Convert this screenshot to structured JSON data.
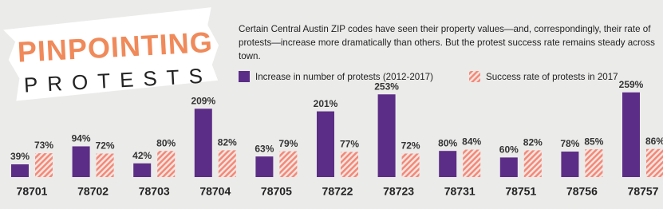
{
  "chart_data": {
    "type": "bar",
    "title": [
      "PINPOINTING",
      "PROTESTS"
    ],
    "description": "Certain Central Austin ZIP codes have seen their property values—and, correspondingly, their rate of protests—increase more dramatically than others. But the protest success rate remains steady across town.",
    "categories": [
      "78701",
      "78702",
      "78703",
      "78704",
      "78705",
      "78722",
      "78723",
      "78731",
      "78751",
      "78756",
      "78757"
    ],
    "series": [
      {
        "name": "Increase in number of protests (2012-2017)",
        "color": "#5c2d86",
        "pattern": "solid",
        "values": [
          39,
          94,
          42,
          209,
          63,
          201,
          253,
          80,
          60,
          78,
          259
        ],
        "value_labels": [
          "39%",
          "94%",
          "42%",
          "209%",
          "63%",
          "201%",
          "253%",
          "80%",
          "60%",
          "78%",
          "259%"
        ]
      },
      {
        "name": "Success rate of protests in 2017",
        "color": "#f08a7a",
        "pattern": "hatch",
        "values": [
          73,
          72,
          80,
          82,
          79,
          77,
          72,
          84,
          82,
          85,
          86
        ],
        "value_labels": [
          "73%",
          "72%",
          "80%",
          "82%",
          "79%",
          "77%",
          "72%",
          "84%",
          "82%",
          "85%",
          "86%"
        ]
      }
    ]
  }
}
